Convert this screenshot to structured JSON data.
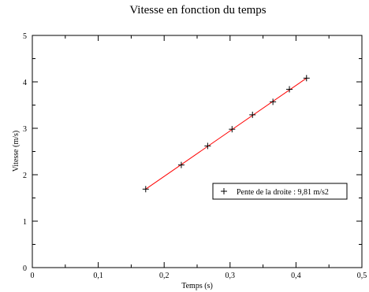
{
  "chart_data": {
    "type": "scatter",
    "title": "Vitesse en fonction du temps",
    "xlabel": "Temps (s)",
    "ylabel": "Vitesse (m/s)",
    "xlim": [
      0,
      0.5
    ],
    "ylim": [
      0,
      5
    ],
    "x_ticks": [
      0,
      0.1,
      0.2,
      0.3,
      0.4,
      0.5
    ],
    "x_tick_labels": [
      "0",
      "0,1",
      "0,2",
      "0,3",
      "0,4",
      "0,5"
    ],
    "y_ticks": [
      0,
      1,
      2,
      3,
      4,
      5
    ],
    "y_tick_labels": [
      "0",
      "1",
      "2",
      "3",
      "4",
      "5"
    ],
    "grid": false,
    "legend_position": "center-right",
    "series": [
      {
        "name": "Pente de la droite : 9,81 m/s2",
        "marker": "plus",
        "color": "#000000",
        "x": [
          0.172,
          0.226,
          0.266,
          0.303,
          0.334,
          0.365,
          0.39,
          0.416
        ],
        "y": [
          1.69,
          2.21,
          2.62,
          2.98,
          3.29,
          3.57,
          3.84,
          4.08
        ]
      }
    ],
    "fit_line": {
      "color": "#ff0000",
      "x": [
        0.172,
        0.416
      ],
      "y": [
        1.69,
        4.08
      ]
    }
  }
}
